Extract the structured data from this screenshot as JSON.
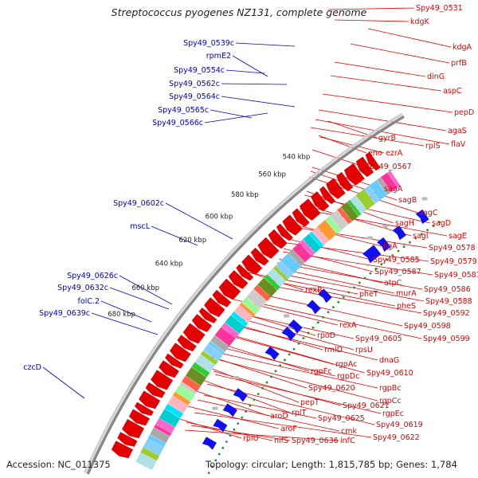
{
  "title": "Streptococcus pyogenes NZ131, complete genome",
  "footer": {
    "accession": "Accession: NC_011375",
    "topology": "Topology: circular; Length: 1,815,785 bp; Genes: 1,784"
  },
  "colors": {
    "forward_label": "#e30000",
    "reverse_label": "#0000c8",
    "forward_gene": "#e30000",
    "reverse_gene": "#1010ee",
    "backbone": "#888888",
    "tick_dots": "#2a8a2a"
  },
  "kbp_ticks": [
    "540 kbp",
    "560 kbp",
    "580 kbp",
    "600 kbp",
    "620 kbp",
    "640 kbp",
    "660 kbp",
    "680 kbp"
  ],
  "forward_labels": [
    "Spy49_0531",
    "kdgK",
    "kdgA",
    "prfB",
    "dinG",
    "aspC",
    "pepD",
    "agaS",
    "flaV",
    "rplS",
    "gyrB",
    "eno",
    "ezrA",
    "Spy49_0567",
    "sagA",
    "sagB",
    "sagC",
    "sagH",
    "sagD",
    "sagI",
    "sagE",
    "ligA",
    "Spy49_0578",
    "Spy49_0585",
    "Spy49_0579",
    "Spy49_0587",
    "Spy49_0581",
    "atpC",
    "Spy49_0586",
    "murA",
    "pheT",
    "Spy49_0588",
    "rexB",
    "pheS",
    "Spy49_0592",
    "Spy49_0598",
    "rexA",
    "Spy49_0599",
    "rpoD",
    "Spy49_0605",
    "rpsU",
    "rmlD",
    "dnaG",
    "rgpAc",
    "Spy49_0610",
    "rgpFc",
    "rgpDc",
    "rgpBc",
    "Spy49_0620",
    "rgpCc",
    "pepT",
    "Spy49_0621",
    "rgpEc",
    "rplT",
    "Spy49_0619",
    "aroD",
    "Spy49_0625",
    "cmk",
    "aroF",
    "Spy49_0622",
    "rplU",
    "nifS",
    "Spy49_0636",
    "infC"
  ],
  "reverse_labels": [
    "Spy49_0539c",
    "rpmE2",
    "Spy49_0554c",
    "Spy49_0562c",
    "Spy49_0564c",
    "Spy49_0565c",
    "Spy49_0566c",
    "Spy49_0602c",
    "mscL",
    "Spy49_0626c",
    "Spy49_0632c",
    "folC.2",
    "Spy49_0639c",
    "czcD"
  ]
}
